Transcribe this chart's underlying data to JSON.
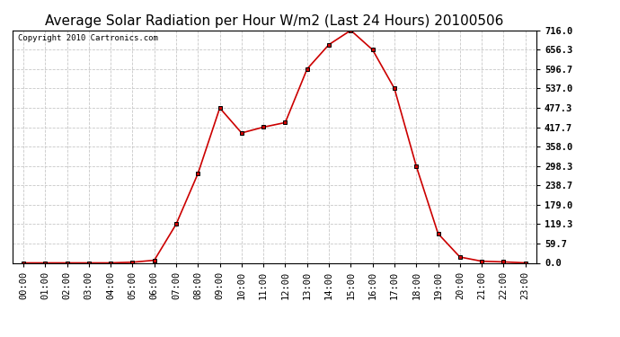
{
  "title": "Average Solar Radiation per Hour W/m2 (Last 24 Hours) 20100506",
  "copyright": "Copyright 2010 Cartronics.com",
  "hours": [
    "00:00",
    "01:00",
    "02:00",
    "03:00",
    "04:00",
    "05:00",
    "06:00",
    "07:00",
    "08:00",
    "09:00",
    "10:00",
    "11:00",
    "12:00",
    "13:00",
    "14:00",
    "15:00",
    "16:00",
    "17:00",
    "18:00",
    "19:00",
    "20:00",
    "21:00",
    "22:00",
    "23:00"
  ],
  "values": [
    0,
    0,
    0,
    0,
    0,
    2,
    8,
    119,
    275,
    477,
    400,
    418,
    432,
    597,
    672,
    716,
    656,
    537,
    298,
    90,
    18,
    5,
    3,
    0
  ],
  "line_color": "#cc0000",
  "marker": "s",
  "marker_color": "#000000",
  "background_color": "#ffffff",
  "grid_color": "#c8c8c8",
  "ylim": [
    0,
    716.0
  ],
  "yticks": [
    0.0,
    59.7,
    119.3,
    179.0,
    238.7,
    298.3,
    358.0,
    417.7,
    477.3,
    537.0,
    596.7,
    656.3,
    716.0
  ],
  "title_fontsize": 11,
  "copyright_fontsize": 6.5,
  "tick_fontsize": 7.5,
  "ytick_fontsize": 7.5
}
